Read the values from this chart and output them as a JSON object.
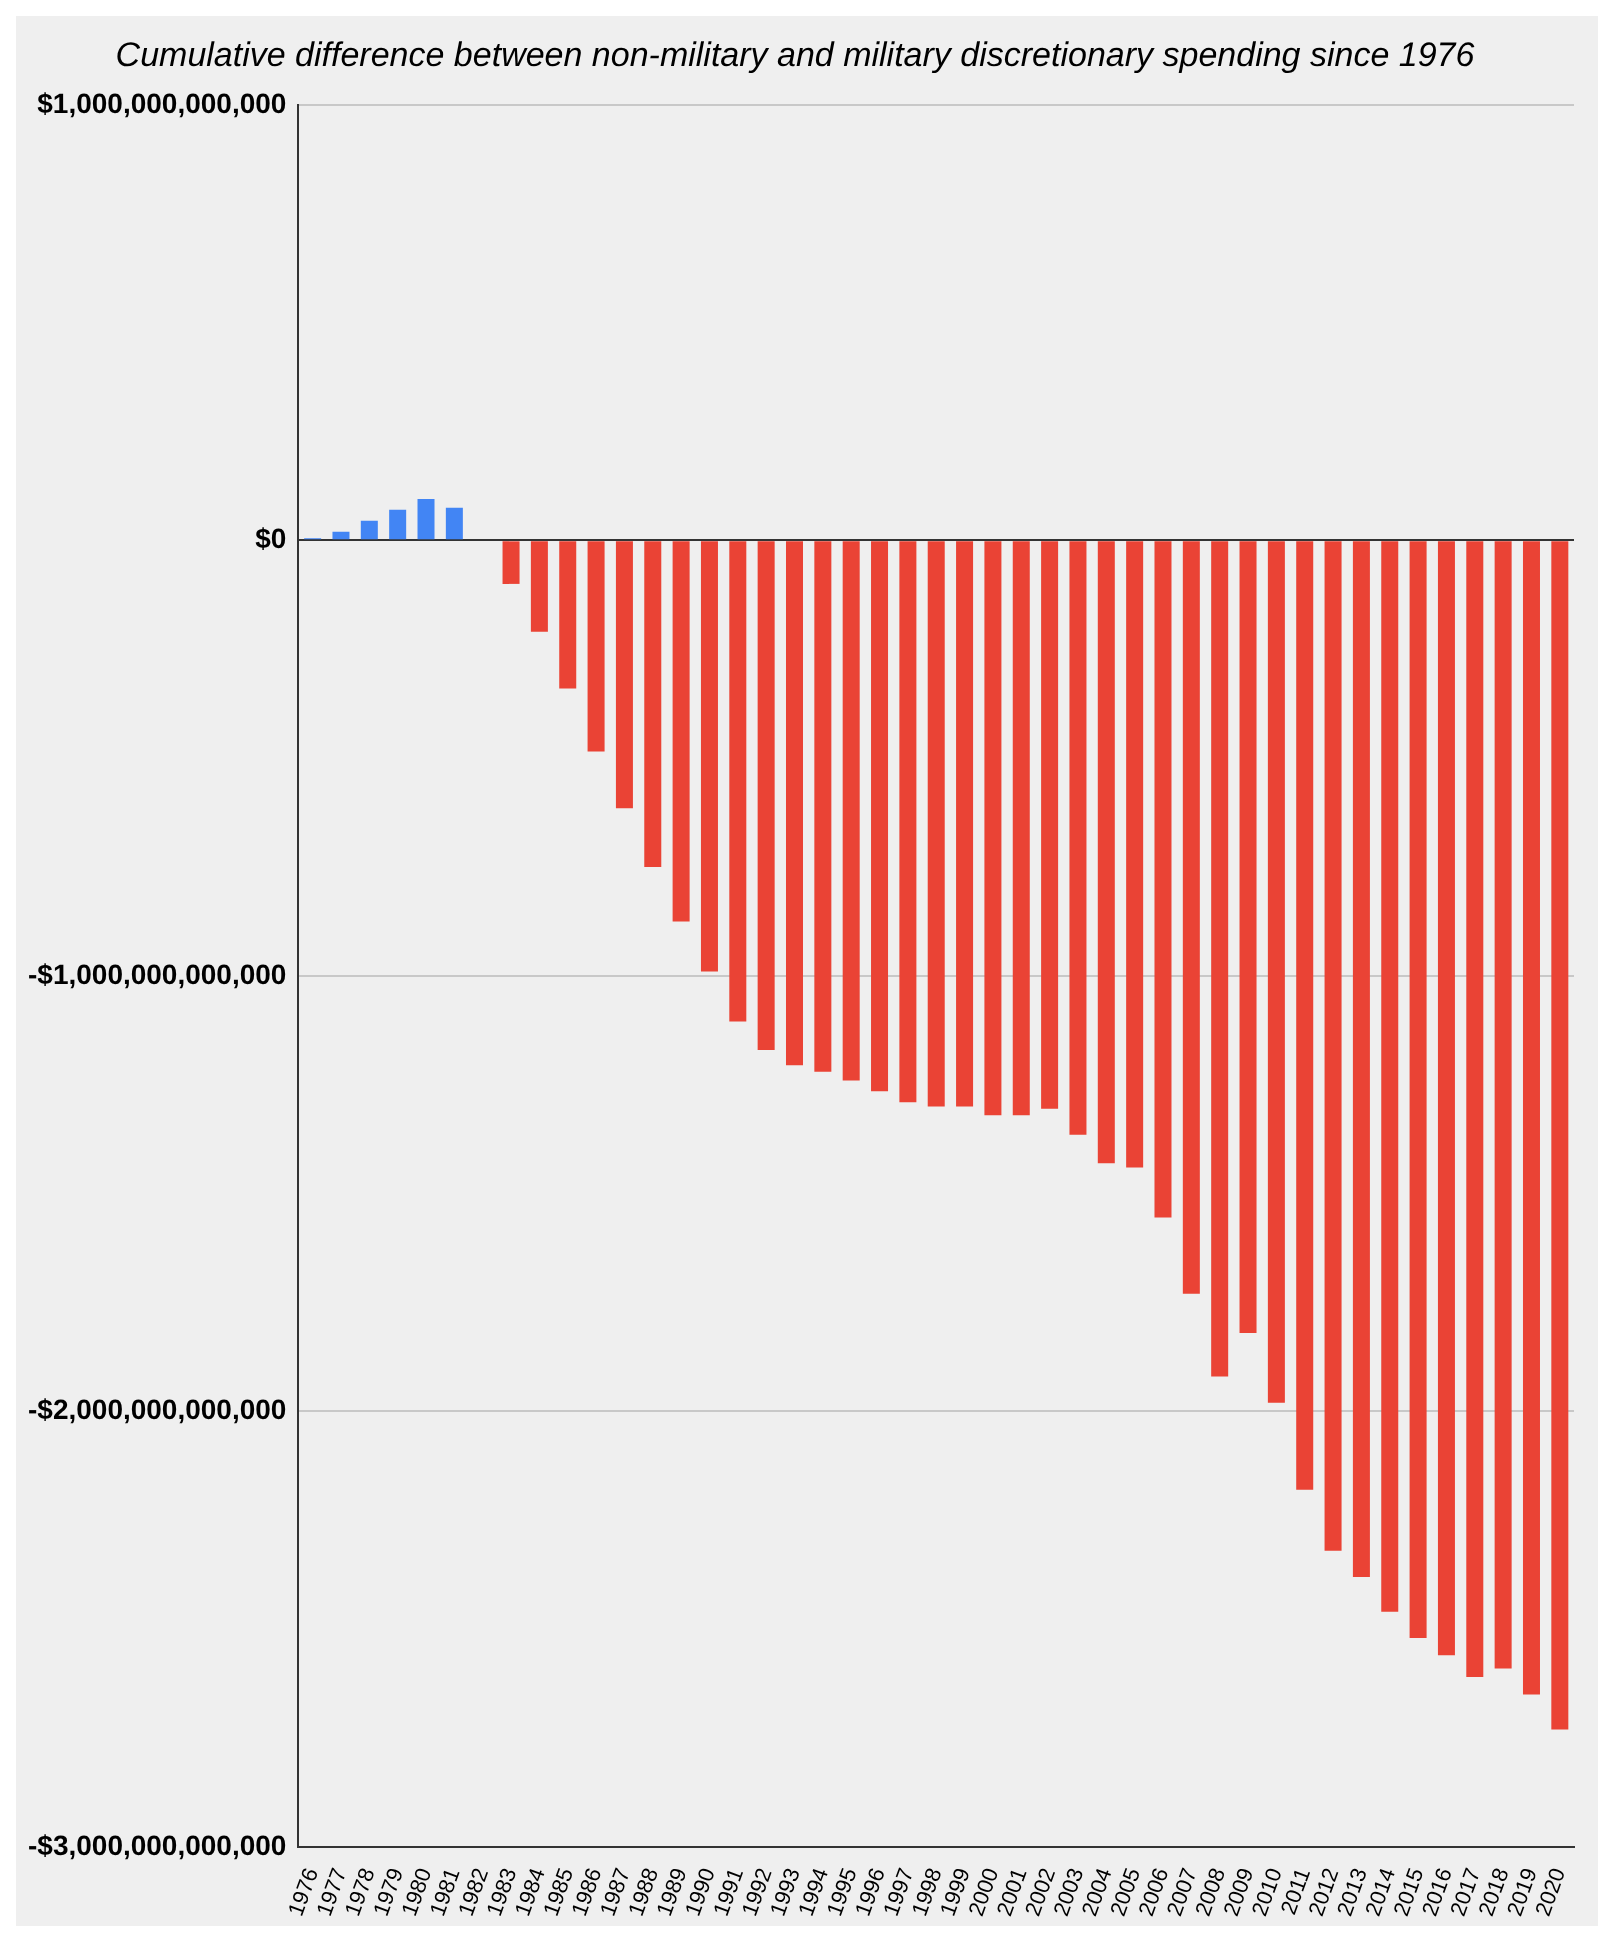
{
  "chart_data": {
    "type": "bar",
    "title": "Cumulative difference between non-military and military discretionary spending since 1976",
    "categories": [
      "1976",
      "1977",
      "1978",
      "1979",
      "1980",
      "1981",
      "1982",
      "1983",
      "1984",
      "1985",
      "1986",
      "1987",
      "1988",
      "1989",
      "1990",
      "1991",
      "1992",
      "1993",
      "1994",
      "1995",
      "1996",
      "1997",
      "1998",
      "1999",
      "2000",
      "2001",
      "2002",
      "2003",
      "2004",
      "2005",
      "2006",
      "2007",
      "2008",
      "2009",
      "2010",
      "2011",
      "2012",
      "2013",
      "2014",
      "2015",
      "2016",
      "2017",
      "2018",
      "2019",
      "2020"
    ],
    "values": [
      5000000000,
      20000000000,
      45000000000,
      70000000000,
      95000000000,
      75000000000,
      0,
      -100000000000,
      -210000000000,
      -340000000000,
      -485000000000,
      -615000000000,
      -750000000000,
      -875000000000,
      -990000000000,
      -1105000000000,
      -1170000000000,
      -1205000000000,
      -1220000000000,
      -1240000000000,
      -1265000000000,
      -1290000000000,
      -1300000000000,
      -1300000000000,
      -1320000000000,
      -1320000000000,
      -1305000000000,
      -1365000000000,
      -1430000000000,
      -1440000000000,
      -1555000000000,
      -1730000000000,
      -1920000000000,
      -1820000000000,
      -1980000000000,
      -2180000000000,
      -2320000000000,
      -2380000000000,
      -2460000000000,
      -2520000000000,
      -2560000000000,
      -2610000000000,
      -2590000000000,
      -2650000000000,
      -2730000000000
    ],
    "colors": [
      "#4285f4",
      "#4285f4",
      "#4285f4",
      "#4285f4",
      "#4285f4",
      "#4285f4",
      "#ea4335",
      "#ea4335",
      "#ea4335",
      "#ea4335",
      "#ea4335",
      "#ea4335",
      "#ea4335",
      "#ea4335",
      "#ea4335",
      "#ea4335",
      "#ea4335",
      "#ea4335",
      "#ea4335",
      "#ea4335",
      "#ea4335",
      "#ea4335",
      "#ea4335",
      "#ea4335",
      "#ea4335",
      "#ea4335",
      "#ea4335",
      "#ea4335",
      "#ea4335",
      "#ea4335",
      "#ea4335",
      "#ea4335",
      "#ea4335",
      "#ea4335",
      "#ea4335",
      "#ea4335",
      "#ea4335",
      "#ea4335",
      "#ea4335",
      "#ea4335",
      "#ea4335",
      "#ea4335",
      "#ea4335",
      "#ea4335",
      "#ea4335"
    ],
    "ylim": [
      -3000000000000,
      1000000000000
    ],
    "yticks": [
      {
        "value": -3000000000000,
        "label": "-$3,000,000,000,000"
      },
      {
        "value": -2000000000000,
        "label": "-$2,000,000,000,000"
      },
      {
        "value": -1000000000000,
        "label": "-$1,000,000,000,000"
      },
      {
        "value": 0,
        "label": "$0"
      },
      {
        "value": 1000000000000,
        "label": "$1,000,000,000,000"
      }
    ],
    "grid": "y",
    "legend": false
  }
}
